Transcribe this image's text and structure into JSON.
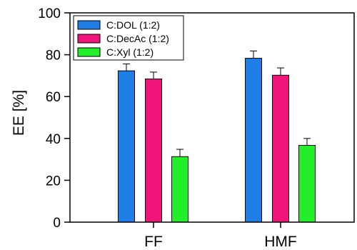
{
  "chart_data": {
    "type": "bar",
    "categories": [
      "FF",
      "HMF"
    ],
    "series": [
      {
        "name": "C:DOL (1:2)",
        "color": "#1f7fe6",
        "values": [
          72.3,
          78.3
        ],
        "errors": [
          3.3,
          3.5
        ]
      },
      {
        "name": "C:DecAc (1:2)",
        "color": "#f0157a",
        "values": [
          68.4,
          70.2
        ],
        "errors": [
          3.3,
          3.5
        ]
      },
      {
        "name": "C:Xyl (1:2)",
        "color": "#22ee2a",
        "values": [
          31.3,
          36.7
        ],
        "errors": [
          3.5,
          3.3
        ]
      }
    ],
    "ylabel": "EE [%]",
    "xlabel": "",
    "ylim": [
      0,
      100
    ],
    "yticks": [
      "0",
      "20",
      "40",
      "60",
      "80",
      "100"
    ],
    "legend_position": "top-left",
    "grid": false
  }
}
